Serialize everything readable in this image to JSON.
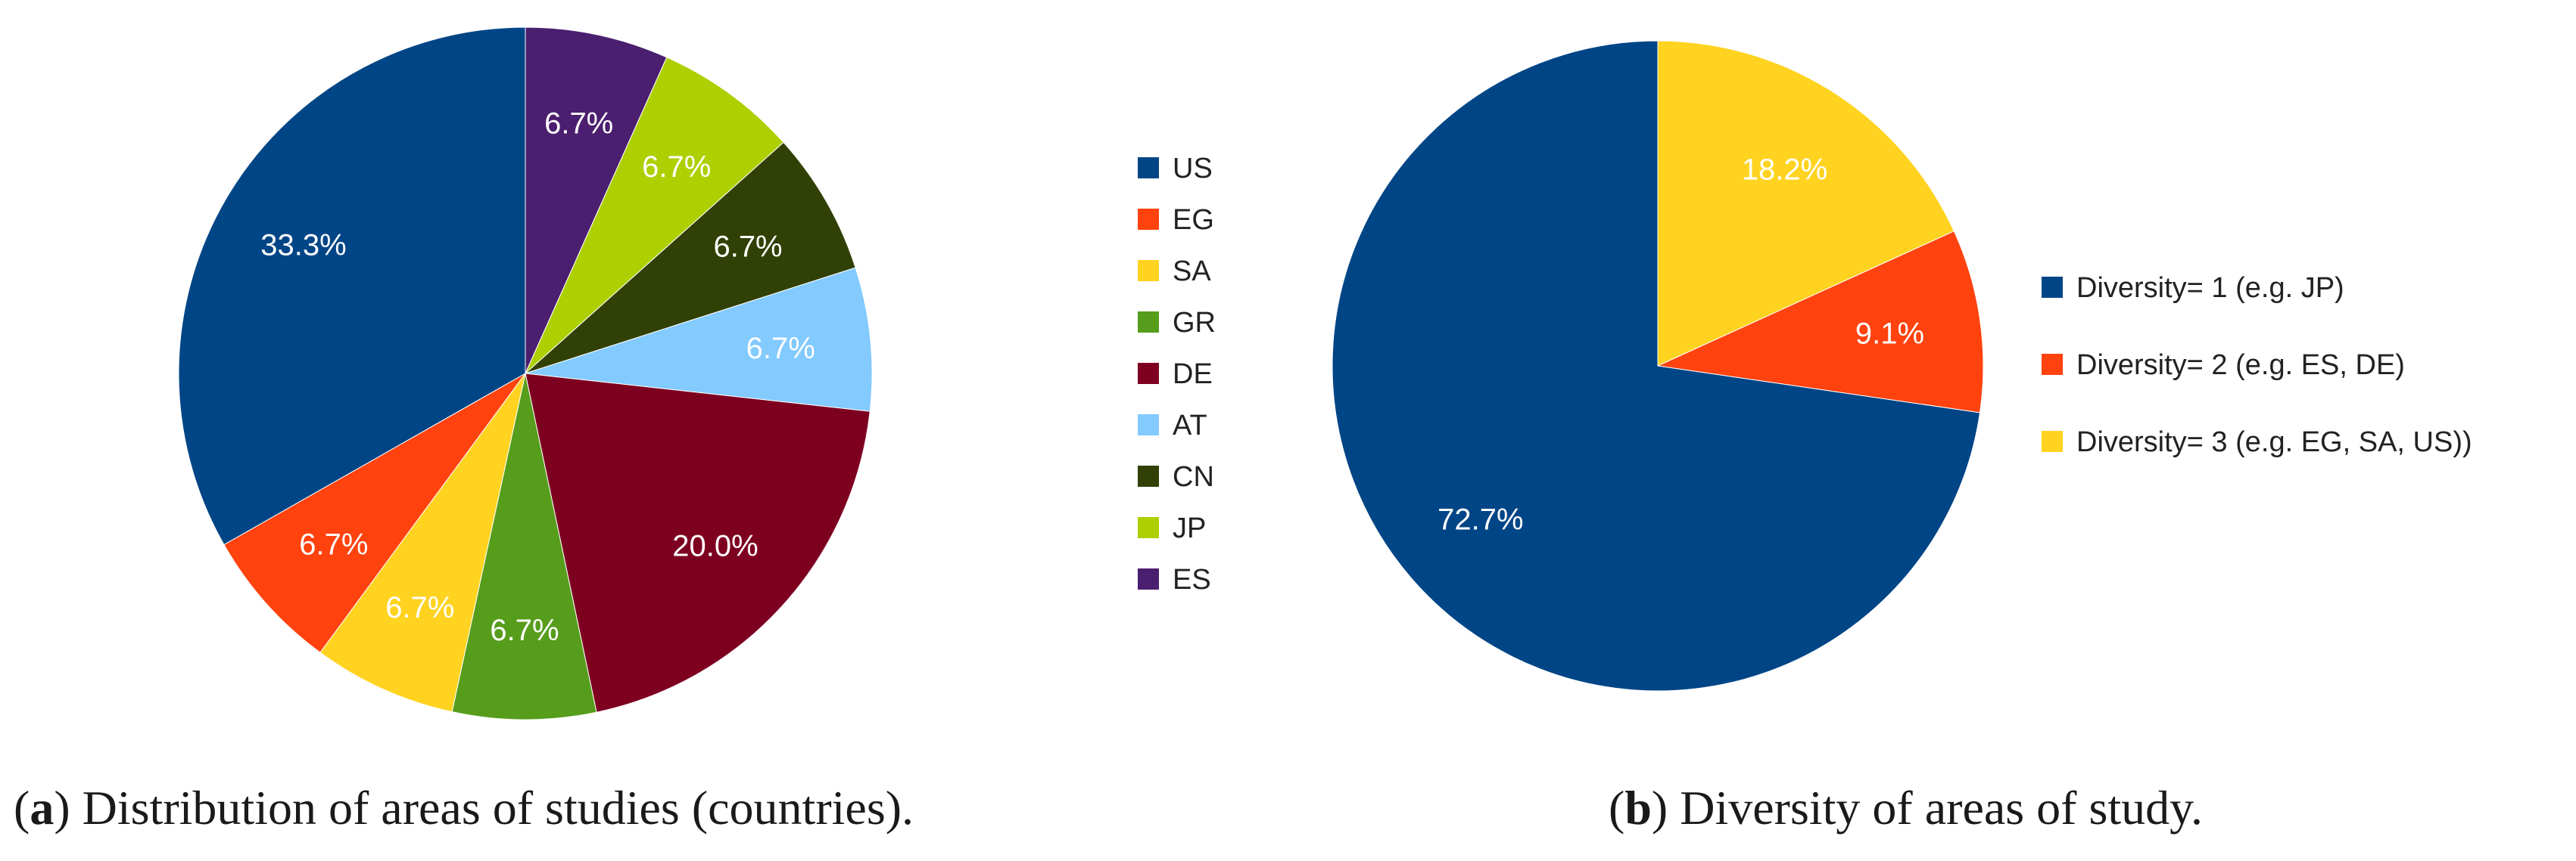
{
  "chart_data": [
    {
      "type": "pie",
      "id": "a",
      "caption": {
        "letter": "a",
        "text": "Distribution of areas of studies (countries)."
      },
      "start_angle_deg": 0,
      "direction": "clockwise",
      "legend_position": "right",
      "slices": [
        {
          "name": "US",
          "value": 33.3,
          "label": "33.3%",
          "color": "#004586"
        },
        {
          "name": "EG",
          "value": 6.7,
          "label": "6.7%",
          "color": "#ff420e"
        },
        {
          "name": "SA",
          "value": 6.7,
          "label": "6.7%",
          "color": "#ffd320"
        },
        {
          "name": "GR",
          "value": 6.7,
          "label": "6.7%",
          "color": "#579d1c"
        },
        {
          "name": "DE",
          "value": 20.0,
          "label": "20.0%",
          "color": "#7e0021"
        },
        {
          "name": "AT",
          "value": 6.7,
          "label": "6.7%",
          "color": "#83caff"
        },
        {
          "name": "CN",
          "value": 6.7,
          "label": "6.7%",
          "color": "#314004"
        },
        {
          "name": "JP",
          "value": 6.7,
          "label": "6.7%",
          "color": "#aecf00"
        },
        {
          "name": "ES",
          "value": 6.7,
          "label": "6.7%",
          "color": "#4b1f6f"
        }
      ],
      "legend_order": [
        "US",
        "EG",
        "SA",
        "GR",
        "DE",
        "AT",
        "CN",
        "JP",
        "ES"
      ],
      "slice_order": [
        "ES",
        "JP",
        "CN",
        "AT",
        "DE",
        "GR",
        "SA",
        "EG",
        "US"
      ]
    },
    {
      "type": "pie",
      "id": "b",
      "caption": {
        "letter": "b",
        "text": "Diversity of areas of study."
      },
      "start_angle_deg": 0,
      "direction": "clockwise",
      "legend_position": "right",
      "slices": [
        {
          "name": "Diversity= 1 (e.g. JP)",
          "value": 72.7,
          "label": "72.7%",
          "color": "#004586"
        },
        {
          "name": "Diversity= 2 (e.g. ES, DE)",
          "value": 9.1,
          "label": "9.1%",
          "color": "#ff420e"
        },
        {
          "name": "Diversity= 3 (e.g. EG, SA, US))",
          "value": 18.2,
          "label": "18.2%",
          "color": "#ffd320"
        }
      ],
      "legend_order": [
        "Diversity= 1 (e.g. JP)",
        "Diversity= 2 (e.g. ES, DE)",
        "Diversity= 3 (e.g. EG, SA, US))"
      ],
      "slice_order": [
        "Diversity= 3 (e.g. EG, SA, US))",
        "Diversity= 2 (e.g. ES, DE)",
        "Diversity= 1 (e.g. JP)"
      ]
    }
  ]
}
